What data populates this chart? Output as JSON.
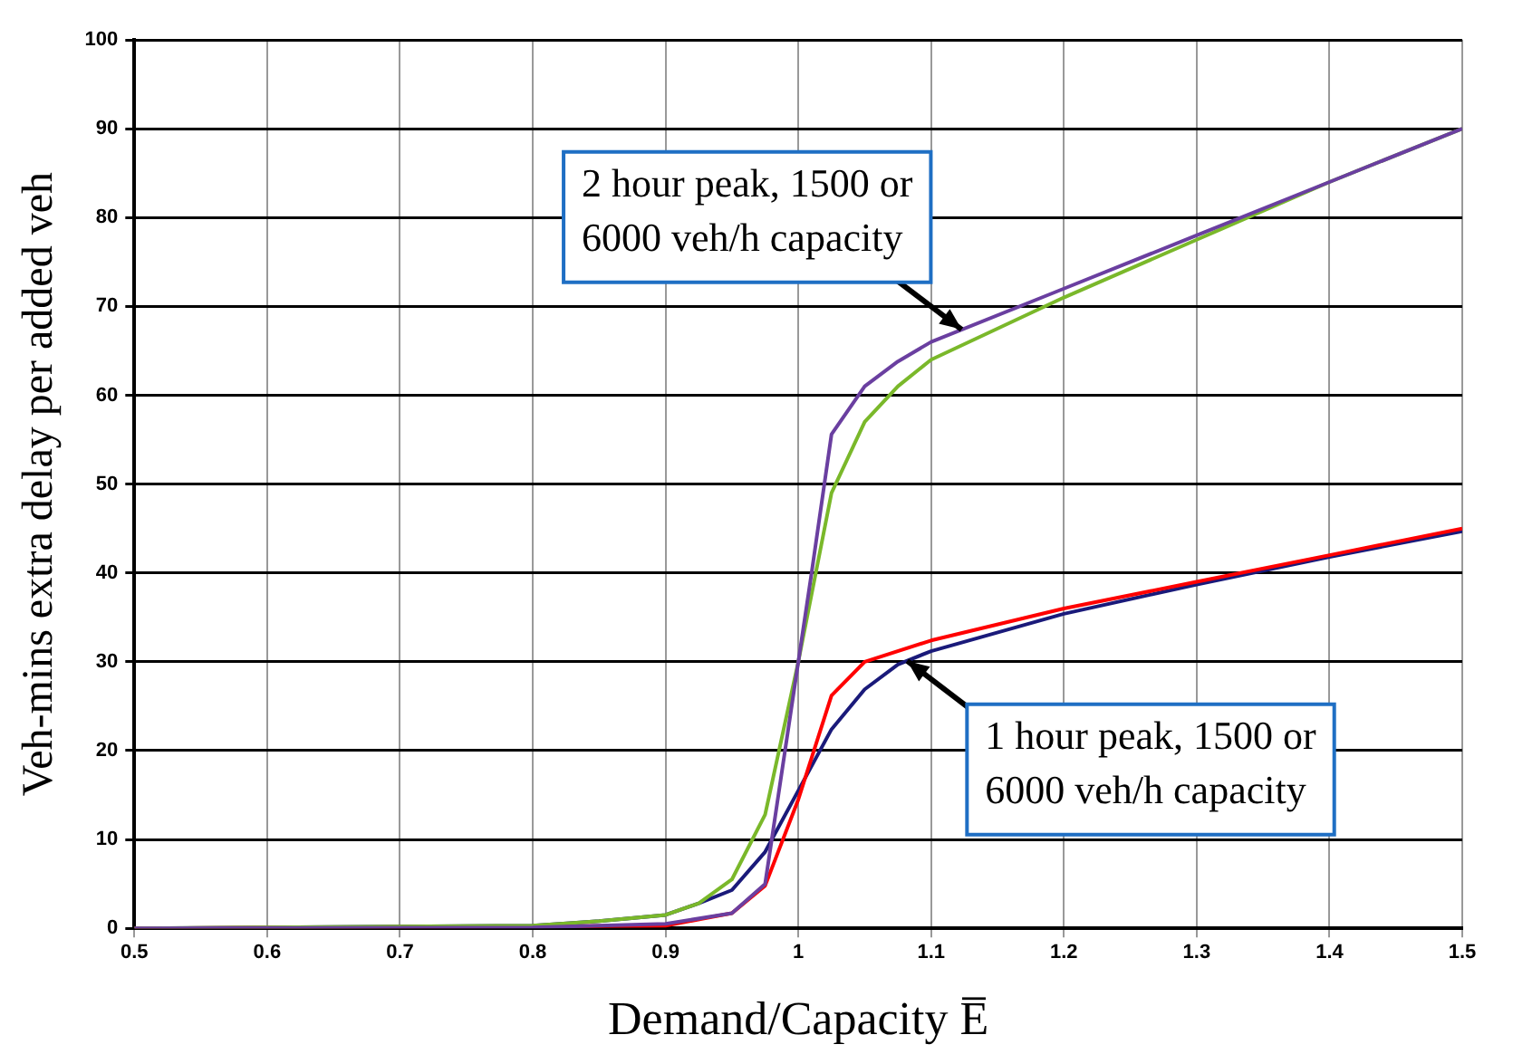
{
  "chart_data": {
    "type": "line",
    "xlabel": "Demand/Capacity E̅",
    "ylabel": "Veh-mins extra delay per added veh",
    "xlim": [
      0.5,
      1.5
    ],
    "xticks": [
      0.5,
      0.6,
      0.7,
      0.8,
      0.9,
      1,
      1.1,
      1.2,
      1.3,
      1.4,
      1.5
    ],
    "ylim": [
      0,
      100
    ],
    "yticks": [
      0,
      10,
      20,
      30,
      40,
      50,
      60,
      70,
      80,
      90,
      100
    ],
    "grid": true,
    "legend": false,
    "marker": "none",
    "line_style": "solid",
    "series": [
      {
        "color": "#6a3fa0",
        "x": [
          0.5,
          0.8,
          0.9,
          0.95,
          0.975,
          0.985,
          1.0,
          1.01,
          1.025,
          1.05,
          1.075,
          1.1,
          1.2,
          1.3,
          1.4,
          1.5
        ],
        "values": [
          0,
          0.1,
          0.5,
          1.7,
          5,
          15,
          30,
          40,
          55.6,
          61,
          63.8,
          66,
          72,
          78,
          84,
          90
        ]
      },
      {
        "color": "#7ab82a",
        "x": [
          0.5,
          0.8,
          0.85,
          0.9,
          0.925,
          0.95,
          0.975,
          1.0,
          1.025,
          1.05,
          1.075,
          1.1,
          1.2,
          1.3,
          1.4,
          1.5
        ],
        "values": [
          0,
          0.3,
          0.8,
          1.5,
          2.8,
          5.5,
          12.8,
          30,
          49,
          57,
          61,
          64,
          71,
          77.5,
          84,
          90
        ]
      },
      {
        "color": "#ff0000",
        "x": [
          0.5,
          0.9,
          0.95,
          0.975,
          1.0,
          1.025,
          1.05,
          1.1,
          1.2,
          1.3,
          1.4,
          1.5
        ],
        "values": [
          0,
          0.3,
          1.7,
          4.8,
          14.5,
          26.2,
          30,
          32.4,
          36,
          39,
          42,
          45
        ]
      },
      {
        "color": "#1a1a7a",
        "x": [
          0.5,
          0.8,
          0.85,
          0.9,
          0.925,
          0.95,
          0.975,
          1.0,
          1.025,
          1.05,
          1.075,
          1.1,
          1.2,
          1.3,
          1.4,
          1.5
        ],
        "values": [
          0,
          0.3,
          0.8,
          1.5,
          2.8,
          4.3,
          8.6,
          15.5,
          22.4,
          26.9,
          29.7,
          31.2,
          35.4,
          38.7,
          41.8,
          44.7
        ]
      }
    ],
    "annotations": [
      {
        "text": "2 hour peak, 1500 or\n6000 veh/h capacity",
        "x": 1.123,
        "y": 67.4
      },
      {
        "text": "1 hour peak, 1500 or\n6000 veh/h capacity",
        "x": 1.082,
        "y": 30.1
      }
    ]
  }
}
